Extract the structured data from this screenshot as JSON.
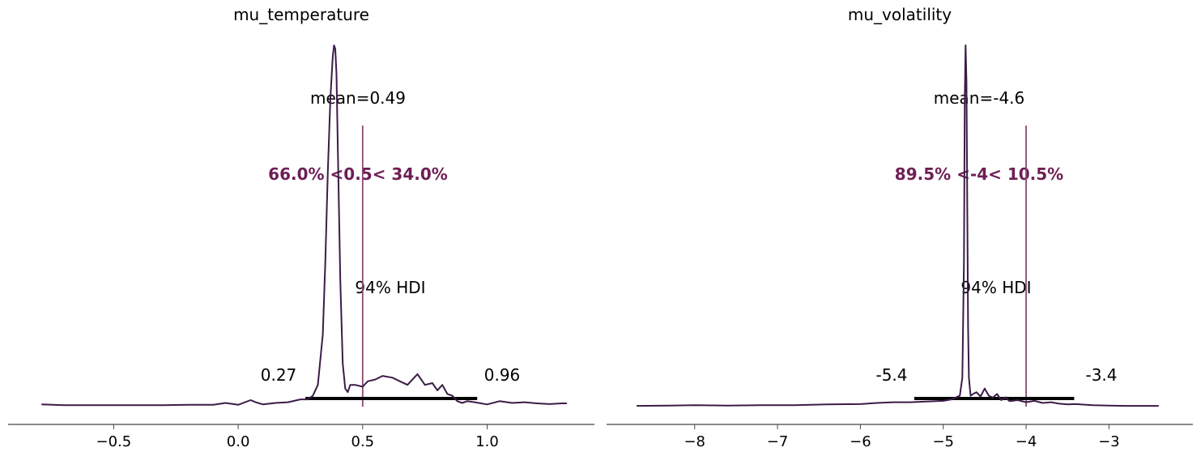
{
  "chart_data": [
    {
      "type": "line",
      "title": "mu_temperature",
      "xlim": [
        -0.82,
        1.33
      ],
      "xticks": [
        -0.5,
        0.0,
        0.5,
        1.0
      ],
      "xtick_labels": [
        "−0.5",
        "0.0",
        "0.5",
        "1.0"
      ],
      "density_color": "#3b1c46",
      "ref_color": "#8b4a74",
      "ref_text_color": "#6e1f55",
      "mean_label": "mean=0.49",
      "ref_value": 0.5,
      "ref_label": "66.0% <0.5< 34.0%",
      "hdi_label": "94% HDI",
      "hdi": [
        0.27,
        0.96
      ],
      "hdi_low_label": "0.27",
      "hdi_high_label": "0.96",
      "density": {
        "x": [
          -0.79,
          -0.7,
          -0.6,
          -0.5,
          -0.4,
          -0.3,
          -0.2,
          -0.1,
          -0.05,
          0.0,
          0.05,
          0.07,
          0.1,
          0.15,
          0.2,
          0.25,
          0.28,
          0.3,
          0.32,
          0.34,
          0.35,
          0.36,
          0.37,
          0.38,
          0.385,
          0.39,
          0.395,
          0.4,
          0.41,
          0.42,
          0.43,
          0.44,
          0.45,
          0.47,
          0.5,
          0.52,
          0.55,
          0.58,
          0.62,
          0.65,
          0.68,
          0.7,
          0.72,
          0.75,
          0.78,
          0.8,
          0.82,
          0.84,
          0.86,
          0.88,
          0.9,
          0.92,
          0.95,
          1.0,
          1.05,
          1.1,
          1.15,
          1.2,
          1.25,
          1.3,
          1.32
        ],
        "y": [
          0.006,
          0.004,
          0.004,
          0.004,
          0.004,
          0.004,
          0.005,
          0.005,
          0.01,
          0.005,
          0.018,
          0.012,
          0.006,
          0.01,
          0.012,
          0.02,
          0.02,
          0.03,
          0.06,
          0.2,
          0.4,
          0.65,
          0.85,
          0.97,
          1.0,
          0.99,
          0.92,
          0.72,
          0.35,
          0.12,
          0.05,
          0.04,
          0.06,
          0.06,
          0.055,
          0.07,
          0.075,
          0.085,
          0.08,
          0.07,
          0.06,
          0.075,
          0.09,
          0.06,
          0.065,
          0.045,
          0.06,
          0.035,
          0.03,
          0.015,
          0.01,
          0.015,
          0.012,
          0.006,
          0.015,
          0.01,
          0.012,
          0.009,
          0.007,
          0.009,
          0.009
        ]
      }
    },
    {
      "type": "line",
      "title": "mu_volatility",
      "xlim": [
        -8.75,
        -2.3
      ],
      "xticks": [
        -8,
        -7,
        -6,
        -5,
        -4,
        -3
      ],
      "xtick_labels": [
        "−8",
        "−7",
        "−6",
        "−5",
        "−4",
        "−3"
      ],
      "density_color": "#3b1c46",
      "ref_color": "#8b4a74",
      "ref_text_color": "#6e1f55",
      "mean_label": "mean=-4.6",
      "ref_value": -4,
      "ref_label": "89.5% <-4< 10.5%",
      "hdi_label": "94% HDI",
      "hdi": [
        -5.35,
        -3.42
      ],
      "hdi_low_label": "-5.4",
      "hdi_high_label": "-3.4",
      "density": {
        "x": [
          -8.7,
          -8.3,
          -8.0,
          -7.6,
          -7.2,
          -6.8,
          -6.4,
          -6.0,
          -5.8,
          -5.6,
          -5.4,
          -5.2,
          -5.0,
          -4.9,
          -4.8,
          -4.77,
          -4.75,
          -4.74,
          -4.73,
          -4.72,
          -4.71,
          -4.7,
          -4.69,
          -4.67,
          -4.64,
          -4.6,
          -4.55,
          -4.5,
          -4.45,
          -4.4,
          -4.35,
          -4.3,
          -4.25,
          -4.2,
          -4.1,
          -4.0,
          -3.9,
          -3.8,
          -3.7,
          -3.6,
          -3.5,
          -3.4,
          -3.2,
          -3.0,
          -2.8,
          -2.6,
          -2.4
        ],
        "y": [
          0.002,
          0.003,
          0.004,
          0.003,
          0.004,
          0.004,
          0.006,
          0.007,
          0.01,
          0.012,
          0.012,
          0.014,
          0.016,
          0.02,
          0.03,
          0.08,
          0.4,
          0.85,
          1.0,
          0.9,
          0.55,
          0.22,
          0.08,
          0.03,
          0.035,
          0.04,
          0.028,
          0.05,
          0.03,
          0.025,
          0.035,
          0.018,
          0.026,
          0.015,
          0.018,
          0.012,
          0.016,
          0.01,
          0.012,
          0.008,
          0.006,
          0.007,
          0.004,
          0.003,
          0.002,
          0.002,
          0.002
        ]
      }
    }
  ]
}
